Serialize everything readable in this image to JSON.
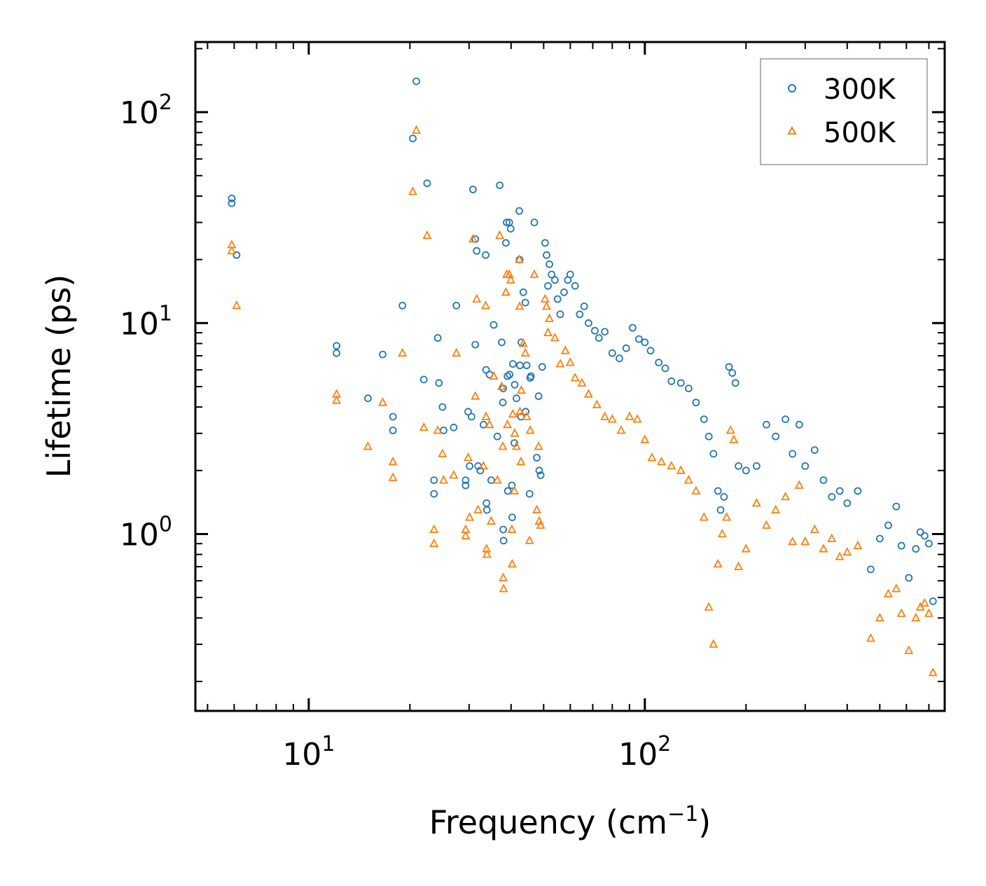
{
  "chart_data": {
    "type": "scatter",
    "title": "",
    "xlabel": "Frequency (cm",
    "xlabel_sup": "−1",
    "xlabel_end": ")",
    "ylabel": "Lifetime (ps)",
    "xscale": "log",
    "yscale": "log",
    "xlim": [
      4.6,
      780
    ],
    "ylim": [
      0.145,
      215
    ],
    "x_ticks": [
      {
        "base": "10",
        "exp": "1"
      },
      {
        "base": "10",
        "exp": "2"
      }
    ],
    "y_ticks": [
      {
        "base": "10",
        "exp": "0"
      },
      {
        "base": "10",
        "exp": "1"
      },
      {
        "base": "10",
        "exp": "2"
      }
    ],
    "legend_position": "top-right",
    "series": [
      {
        "name": "300K",
        "marker": "circle",
        "color": "#1f77b4",
        "points": [
          [
            5.9,
            39
          ],
          [
            5.9,
            37
          ],
          [
            6.1,
            21
          ],
          [
            12.1,
            7.8
          ],
          [
            12.1,
            7.2
          ],
          [
            15,
            4.4
          ],
          [
            16.6,
            7.1
          ],
          [
            17.8,
            3.6
          ],
          [
            17.8,
            3.1
          ],
          [
            19,
            12.1
          ],
          [
            20.4,
            75
          ],
          [
            20.9,
            140
          ],
          [
            22,
            5.4
          ],
          [
            22.5,
            46
          ],
          [
            23.6,
            1.8
          ],
          [
            23.6,
            1.55
          ],
          [
            24.2,
            8.5
          ],
          [
            24.4,
            5.2
          ],
          [
            25,
            4
          ],
          [
            25.2,
            3.1
          ],
          [
            27,
            3.2
          ],
          [
            27.5,
            12.1
          ],
          [
            29.3,
            1.8
          ],
          [
            29.3,
            1.7
          ],
          [
            29.8,
            3.8
          ],
          [
            30.1,
            2.1
          ],
          [
            30.5,
            3.6
          ],
          [
            30.8,
            43
          ],
          [
            31.3,
            7.9
          ],
          [
            31.3,
            25
          ],
          [
            31.6,
            22
          ],
          [
            31.9,
            2.1
          ],
          [
            32.4,
            2
          ],
          [
            33.1,
            3.3
          ],
          [
            33.6,
            21
          ],
          [
            33.7,
            6
          ],
          [
            33.8,
            1.4
          ],
          [
            33.9,
            1.3
          ],
          [
            34.5,
            5.7
          ],
          [
            34.9,
            1.8
          ],
          [
            35.5,
            9.8
          ],
          [
            36.4,
            2.9
          ],
          [
            37,
            45
          ],
          [
            37.5,
            8.1
          ],
          [
            37.8,
            4.2
          ],
          [
            37.9,
            4.9
          ],
          [
            37.9,
            1.05
          ],
          [
            38,
            0.93
          ],
          [
            38.6,
            24
          ],
          [
            38.8,
            30
          ],
          [
            39,
            5.6
          ],
          [
            39.1,
            1.6
          ],
          [
            39.5,
            30
          ],
          [
            39.6,
            5.7
          ],
          [
            39.9,
            28
          ],
          [
            40.2,
            1.7
          ],
          [
            40.3,
            1.2
          ],
          [
            40.5,
            6.4
          ],
          [
            40.9,
            2.7
          ],
          [
            41,
            5.1
          ],
          [
            41.5,
            4.4
          ],
          [
            42.3,
            34
          ],
          [
            42.4,
            20
          ],
          [
            42.5,
            6.3
          ],
          [
            42.8,
            3.6
          ],
          [
            42.9,
            8.1
          ],
          [
            43.5,
            14
          ],
          [
            44.1,
            12.5
          ],
          [
            44.2,
            3.8
          ],
          [
            44.5,
            6.3
          ],
          [
            45.4,
            1.55
          ],
          [
            45.6,
            5.5
          ],
          [
            45.8,
            5.6
          ],
          [
            46.9,
            30
          ],
          [
            47.7,
            2.3
          ],
          [
            48.3,
            4.5
          ],
          [
            48.5,
            2
          ],
          [
            49,
            1.9
          ],
          [
            49.5,
            6.2
          ],
          [
            50.5,
            24
          ],
          [
            51,
            21
          ],
          [
            51.5,
            15
          ],
          [
            52,
            19
          ],
          [
            52.8,
            17
          ],
          [
            54,
            16
          ],
          [
            55,
            13
          ],
          [
            56,
            11
          ],
          [
            57.5,
            14
          ],
          [
            59,
            16
          ],
          [
            60,
            17
          ],
          [
            62,
            15
          ],
          [
            64,
            11
          ],
          [
            66,
            12
          ],
          [
            68,
            10
          ],
          [
            71,
            9.2
          ],
          [
            73,
            8.5
          ],
          [
            76,
            9.1
          ],
          [
            80,
            7.2
          ],
          [
            84,
            6.8
          ],
          [
            88,
            7.6
          ],
          [
            92,
            9.5
          ],
          [
            96,
            8.4
          ],
          [
            100,
            8.1
          ],
          [
            104,
            7.4
          ],
          [
            110,
            6.5
          ],
          [
            115,
            6.1
          ],
          [
            120,
            5.3
          ],
          [
            128,
            5.2
          ],
          [
            135,
            4.9
          ],
          [
            142,
            4.2
          ],
          [
            150,
            3.5
          ],
          [
            155,
            2.9
          ],
          [
            160,
            2.4
          ],
          [
            165,
            1.6
          ],
          [
            168,
            1.3
          ],
          [
            172,
            1.5
          ],
          [
            178,
            6.2
          ],
          [
            182,
            5.8
          ],
          [
            186,
            5.2
          ],
          [
            190,
            2.1
          ],
          [
            200,
            2
          ],
          [
            215,
            2.1
          ],
          [
            230,
            3.3
          ],
          [
            245,
            2.9
          ],
          [
            262,
            3.5
          ],
          [
            275,
            2.4
          ],
          [
            288,
            3.3
          ],
          [
            300,
            2.1
          ],
          [
            320,
            2.5
          ],
          [
            340,
            1.8
          ],
          [
            360,
            1.5
          ],
          [
            380,
            1.6
          ],
          [
            400,
            1.4
          ],
          [
            430,
            1.6
          ],
          [
            470,
            0.68
          ],
          [
            500,
            0.95
          ],
          [
            530,
            1.1
          ],
          [
            560,
            1.35
          ],
          [
            580,
            0.88
          ],
          [
            610,
            0.62
          ],
          [
            640,
            0.85
          ],
          [
            660,
            1.02
          ],
          [
            680,
            0.98
          ],
          [
            700,
            0.9
          ],
          [
            720,
            0.48
          ]
        ]
      },
      {
        "name": "500K",
        "marker": "triangle",
        "color": "#ff7f0e",
        "points": [
          [
            5.9,
            23.5
          ],
          [
            5.9,
            22
          ],
          [
            6.1,
            12.1
          ],
          [
            12.1,
            4.6
          ],
          [
            12.1,
            4.3
          ],
          [
            15,
            2.6
          ],
          [
            16.6,
            4.2
          ],
          [
            17.8,
            2.2
          ],
          [
            17.8,
            1.85
          ],
          [
            19,
            7.2
          ],
          [
            20.4,
            42
          ],
          [
            20.9,
            82
          ],
          [
            22,
            3.2
          ],
          [
            22.5,
            26
          ],
          [
            23.6,
            1.05
          ],
          [
            23.6,
            0.9
          ],
          [
            24.2,
            3.1
          ],
          [
            25,
            2.4
          ],
          [
            25.2,
            1.8
          ],
          [
            27,
            1.9
          ],
          [
            27.5,
            7.2
          ],
          [
            29.3,
            1.05
          ],
          [
            29.3,
            0.98
          ],
          [
            29.8,
            2.3
          ],
          [
            30.1,
            1.2
          ],
          [
            30.8,
            25
          ],
          [
            31.3,
            4.5
          ],
          [
            31.6,
            13
          ],
          [
            31.9,
            1.3
          ],
          [
            33.1,
            2.1
          ],
          [
            33.6,
            12.1
          ],
          [
            33.7,
            3.6
          ],
          [
            33.8,
            0.85
          ],
          [
            33.9,
            0.8
          ],
          [
            34.5,
            3.3
          ],
          [
            34.9,
            1.15
          ],
          [
            35.5,
            5.6
          ],
          [
            36.4,
            1.8
          ],
          [
            37,
            26
          ],
          [
            37.5,
            5
          ],
          [
            37.8,
            2.6
          ],
          [
            37.9,
            0.62
          ],
          [
            38,
            0.55
          ],
          [
            38.6,
            14
          ],
          [
            38.8,
            17
          ],
          [
            39,
            3.3
          ],
          [
            39.5,
            17
          ],
          [
            39.9,
            16
          ],
          [
            40.2,
            1.05
          ],
          [
            40.3,
            0.72
          ],
          [
            40.5,
            3.7
          ],
          [
            40.9,
            1.6
          ],
          [
            41,
            3
          ],
          [
            41.5,
            2.6
          ],
          [
            42.3,
            20
          ],
          [
            42.4,
            12
          ],
          [
            42.5,
            3.8
          ],
          [
            42.8,
            2.2
          ],
          [
            42.9,
            4.8
          ],
          [
            43.5,
            8
          ],
          [
            44.1,
            7.2
          ],
          [
            44.5,
            3.6
          ],
          [
            45.4,
            0.93
          ],
          [
            45.6,
            3.1
          ],
          [
            46.9,
            17
          ],
          [
            47.7,
            1.3
          ],
          [
            48.3,
            2.6
          ],
          [
            48.5,
            1.15
          ],
          [
            49,
            1.1
          ],
          [
            50.5,
            13
          ],
          [
            51,
            12
          ],
          [
            51.5,
            9
          ],
          [
            52,
            10.5
          ],
          [
            54,
            8.5
          ],
          [
            56,
            6.4
          ],
          [
            58,
            7.4
          ],
          [
            60,
            6.5
          ],
          [
            62,
            5.5
          ],
          [
            65,
            5.2
          ],
          [
            68,
            4.6
          ],
          [
            72,
            4.1
          ],
          [
            76,
            3.6
          ],
          [
            80,
            3.5
          ],
          [
            85,
            3.1
          ],
          [
            90,
            3.6
          ],
          [
            95,
            3.5
          ],
          [
            100,
            2.8
          ],
          [
            105,
            2.3
          ],
          [
            112,
            2.2
          ],
          [
            120,
            2.1
          ],
          [
            128,
            2
          ],
          [
            135,
            1.8
          ],
          [
            142,
            1.6
          ],
          [
            150,
            1.2
          ],
          [
            155,
            0.45
          ],
          [
            160,
            0.3
          ],
          [
            165,
            0.72
          ],
          [
            170,
            1.0
          ],
          [
            175,
            1.2
          ],
          [
            180,
            3.1
          ],
          [
            184,
            2.8
          ],
          [
            190,
            0.7
          ],
          [
            200,
            0.85
          ],
          [
            215,
            1.4
          ],
          [
            230,
            1.1
          ],
          [
            245,
            1.3
          ],
          [
            262,
            1.5
          ],
          [
            275,
            0.92
          ],
          [
            288,
            1.7
          ],
          [
            300,
            0.92
          ],
          [
            320,
            1.05
          ],
          [
            340,
            0.85
          ],
          [
            360,
            0.95
          ],
          [
            380,
            0.78
          ],
          [
            400,
            0.82
          ],
          [
            430,
            0.88
          ],
          [
            470,
            0.32
          ],
          [
            500,
            0.4
          ],
          [
            530,
            0.52
          ],
          [
            560,
            0.55
          ],
          [
            580,
            0.42
          ],
          [
            610,
            0.28
          ],
          [
            640,
            0.4
          ],
          [
            660,
            0.45
          ],
          [
            680,
            0.47
          ],
          [
            700,
            0.42
          ],
          [
            720,
            0.22
          ]
        ]
      }
    ]
  }
}
